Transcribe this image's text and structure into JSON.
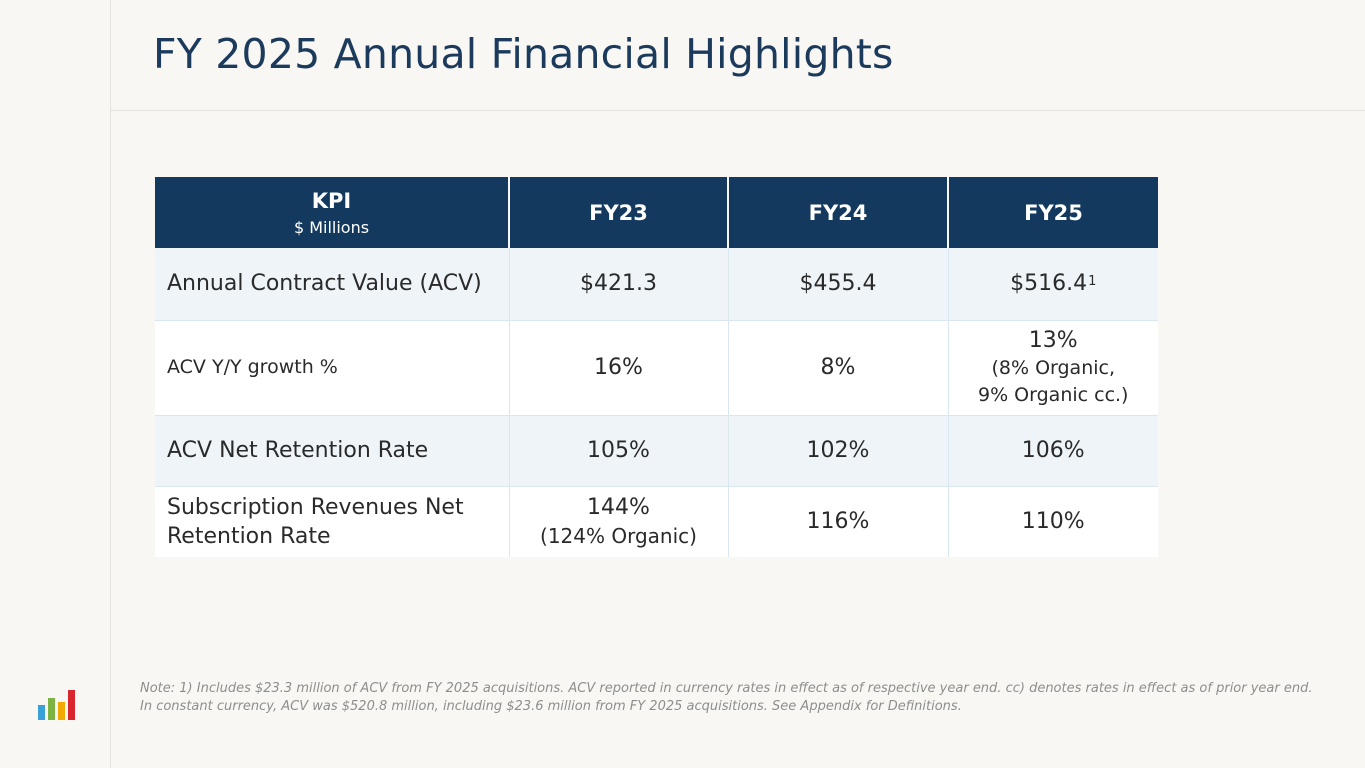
{
  "title": "FY 2025 Annual Financial Highlights",
  "table": {
    "header": {
      "kpi_label": "KPI",
      "kpi_sublabel": "$ Millions",
      "col1": "FY23",
      "col2": "FY24",
      "col3": "FY25"
    },
    "rows": [
      {
        "label": "Annual Contract Value (ACV)",
        "fy23": "$421.3",
        "fy24": "$455.4",
        "fy25": "$516.4",
        "fy25_footnote": "1"
      },
      {
        "label": "ACV Y/Y growth %",
        "fy23": "16%",
        "fy24": "8%",
        "fy25": "13%",
        "fy25_note_1": "(8% Organic,",
        "fy25_note_2": "9% Organic cc.)"
      },
      {
        "label": "ACV Net Retention Rate",
        "fy23": "105%",
        "fy24": "102%",
        "fy25": "106%"
      },
      {
        "label": "Subscription Revenues Net Retention Rate",
        "fy23": "144%",
        "fy23_note": "(124% Organic)",
        "fy24": "116%",
        "fy25": "110%"
      }
    ]
  },
  "footnote": "Note: 1) Includes $23.3 million of ACV from FY 2025 acquisitions.  ACV reported in currency rates in effect as of respective year end.  cc) denotes rates in effect as of prior year end. In constant currency, ACV was $520.8 million, including $23.6 million from FY 2025 acquisitions. See Appendix for Definitions.",
  "logo": {
    "icon": "bar-chart-logo-icon",
    "colors": [
      "#3aa0d8",
      "#7cb342",
      "#f2a900",
      "#d9262e"
    ]
  },
  "colors": {
    "title": "#1b3a5c",
    "header_bg": "#133a5e",
    "row_alt_bg": "#eff4f9",
    "page_bg": "#f8f7f4"
  }
}
